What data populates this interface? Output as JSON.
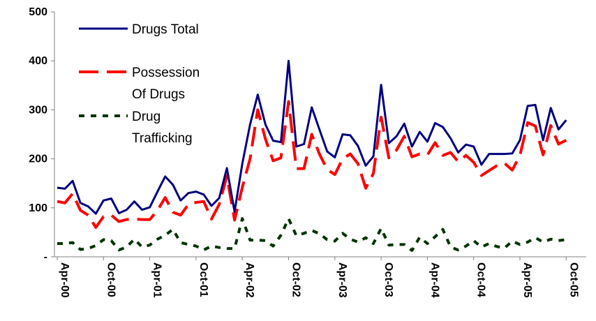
{
  "colors": {
    "drugs_total": "#000080",
    "possession": "#ff0000",
    "trafficking": "#003300",
    "axis": "#808080"
  },
  "chart_data": {
    "type": "line",
    "ylim": [
      0,
      500
    ],
    "yticks": [
      0,
      100,
      200,
      300,
      400,
      500
    ],
    "ytick_labels": [
      "-",
      "100",
      "200",
      "300",
      "400",
      "500"
    ],
    "x_start": "Apr-00",
    "x_end": "Nov-05",
    "xtick_labels": [
      "Apr-00",
      "Oct-00",
      "Apr-01",
      "Oct-01",
      "Apr-02",
      "Oct-02",
      "Apr-03",
      "Oct-03",
      "Apr-04",
      "Oct-04",
      "Apr-05",
      "Oct-05"
    ],
    "legend": {
      "position": "top-left"
    },
    "series": [
      {
        "name": "Drugs Total",
        "style": "solid",
        "values": [
          141,
          139,
          155,
          110,
          103,
          88,
          115,
          119,
          89,
          96,
          113,
          96,
          101,
          133,
          164,
          147,
          115,
          130,
          133,
          127,
          104,
          120,
          181,
          92,
          190,
          270,
          331,
          270,
          237,
          234,
          400,
          225,
          230,
          305,
          260,
          215,
          203,
          250,
          248,
          226,
          186,
          205,
          351,
          232,
          246,
          272,
          225,
          255,
          235,
          273,
          265,
          242,
          213,
          229,
          225,
          188,
          210,
          210,
          210,
          211,
          238,
          308,
          310,
          238,
          304,
          260,
          279
        ]
      },
      {
        "name": "Possession Of Drugs",
        "style": "long-dash",
        "values": [
          113,
          110,
          129,
          95,
          85,
          60,
          82,
          85,
          72,
          76,
          77,
          76,
          76,
          95,
          121,
          91,
          85,
          107,
          111,
          113,
          77,
          107,
          165,
          75,
          142,
          200,
          300,
          240,
          196,
          202,
          317,
          180,
          180,
          250,
          210,
          178,
          168,
          200,
          210,
          190,
          140,
          170,
          285,
          202,
          218,
          246,
          204,
          210,
          208,
          233,
          207,
          213,
          194,
          207,
          193,
          166,
          176,
          186,
          191,
          177,
          207,
          274,
          267,
          208,
          268,
          230,
          238
        ]
      },
      {
        "name": "Drug Trafficking",
        "style": "dotted",
        "values": [
          27,
          27,
          29,
          15,
          17,
          23,
          35,
          33,
          14,
          20,
          36,
          20,
          24,
          36,
          44,
          56,
          29,
          25,
          22,
          14,
          22,
          19,
          17,
          17,
          78,
          34,
          34,
          33,
          22,
          44,
          78,
          43,
          48,
          54,
          47,
          35,
          32,
          48,
          36,
          30,
          39,
          27,
          58,
          24,
          25,
          25,
          13,
          40,
          27,
          41,
          56,
          20,
          14,
          22,
          33,
          20,
          27,
          21,
          18,
          32,
          25,
          30,
          39,
          30,
          36,
          33,
          35
        ]
      }
    ]
  }
}
